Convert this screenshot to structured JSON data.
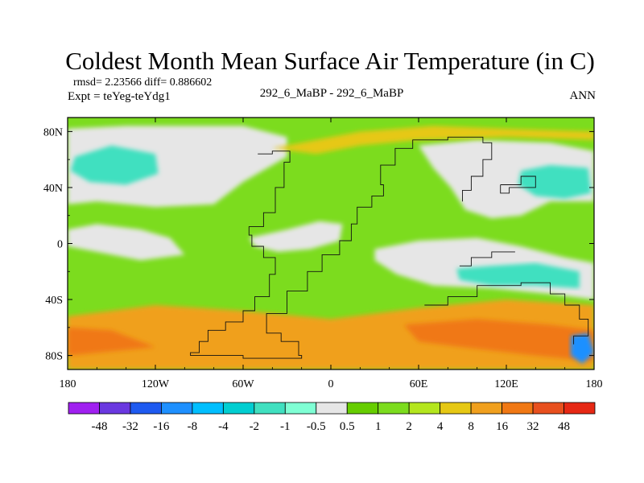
{
  "chart_data": {
    "type": "heatmap",
    "title": "Coldest Month Mean Surface Air Temperature (in C)",
    "stats": "rmsd= 2.23566 diff= 0.886602",
    "experiment": "Expt = teYeg-teYdg1",
    "center_label": "292_6_MaBP - 292_6_MaBP",
    "season": "ANN",
    "projection": "cylindrical equidistant",
    "xlim": [
      -180,
      180
    ],
    "ylim": [
      -90,
      90
    ],
    "x_ticks": [
      {
        "value": -180,
        "label": "180"
      },
      {
        "value": -120,
        "label": "120W"
      },
      {
        "value": -60,
        "label": "60W"
      },
      {
        "value": 0,
        "label": "0"
      },
      {
        "value": 60,
        "label": "60E"
      },
      {
        "value": 120,
        "label": "120E"
      },
      {
        "value": 180,
        "label": "180"
      }
    ],
    "y_ticks": [
      {
        "value": 80,
        "label": "80N"
      },
      {
        "value": 40,
        "label": "40N"
      },
      {
        "value": 0,
        "label": "0"
      },
      {
        "value": -40,
        "label": "40S"
      },
      {
        "value": -80,
        "label": "80S"
      }
    ],
    "colorbar": {
      "levels": [
        "-48",
        "-32",
        "-16",
        "-8",
        "-4",
        "-2",
        "-1",
        "-0.5",
        "0.5",
        "1",
        "2",
        "4",
        "8",
        "16",
        "32",
        "48"
      ],
      "colors": [
        "#a020f0",
        "#6a38e0",
        "#1e5af0",
        "#1e90ff",
        "#00bfff",
        "#00ced1",
        "#40e0c0",
        "#7fffd4",
        "#e6e6e6",
        "#66cd00",
        "#7cdc1e",
        "#b4e61e",
        "#e6c814",
        "#f0a01e",
        "#f07814",
        "#e8501e",
        "#e62814"
      ]
    },
    "regions": [
      {
        "name": "background",
        "bin": "1 to 2",
        "poly": [
          [
            -180,
            90
          ],
          [
            180,
            90
          ],
          [
            180,
            -90
          ],
          [
            -180,
            -90
          ]
        ]
      },
      {
        "name": "north-pacific-neutral",
        "bin": "-0.5 to 0.5",
        "poly": [
          [
            -180,
            82
          ],
          [
            -140,
            84
          ],
          [
            -60,
            84
          ],
          [
            -30,
            76
          ],
          [
            -30,
            62
          ],
          [
            -60,
            44
          ],
          [
            -80,
            28
          ],
          [
            -120,
            26
          ],
          [
            -160,
            30
          ],
          [
            -180,
            28
          ]
        ]
      },
      {
        "name": "eurasia-neutral-north",
        "bin": "-0.5 to 0.5",
        "poly": [
          [
            60,
            70
          ],
          [
            100,
            74
          ],
          [
            150,
            72
          ],
          [
            180,
            66
          ],
          [
            180,
            30
          ],
          [
            150,
            30
          ],
          [
            130,
            20
          ],
          [
            110,
            18
          ],
          [
            92,
            24
          ],
          [
            82,
            40
          ],
          [
            70,
            54
          ]
        ]
      },
      {
        "name": "pacific-neutral-south",
        "bin": "-0.5 to 0.5",
        "poly": [
          [
            -180,
            10
          ],
          [
            -160,
            14
          ],
          [
            -130,
            10
          ],
          [
            -110,
            4
          ],
          [
            -100,
            -8
          ],
          [
            -130,
            -12
          ],
          [
            -160,
            -6
          ],
          [
            -180,
            -2
          ]
        ]
      },
      {
        "name": "indian-ocean-neutral",
        "bin": "-0.5 to 0.5",
        "poly": [
          [
            30,
            -4
          ],
          [
            60,
            2
          ],
          [
            100,
            4
          ],
          [
            130,
            -2
          ],
          [
            160,
            -10
          ],
          [
            180,
            -14
          ],
          [
            180,
            -40
          ],
          [
            150,
            -36
          ],
          [
            110,
            -32
          ],
          [
            70,
            -30
          ],
          [
            45,
            -22
          ],
          [
            30,
            -12
          ]
        ]
      },
      {
        "name": "central-tropics-neutral",
        "bin": "-0.5 to 0.5",
        "poly": [
          [
            -56,
            4
          ],
          [
            -30,
            10
          ],
          [
            -8,
            16
          ],
          [
            8,
            14
          ],
          [
            6,
            2
          ],
          [
            -14,
            -4
          ],
          [
            -36,
            -6
          ],
          [
            -52,
            -2
          ]
        ]
      },
      {
        "name": "north-pacific-cool",
        "bin": "-2 to -1",
        "poly": [
          [
            -175,
            62
          ],
          [
            -150,
            70
          ],
          [
            -120,
            64
          ],
          [
            -118,
            50
          ],
          [
            -140,
            42
          ],
          [
            -165,
            44
          ],
          [
            -178,
            52
          ]
        ]
      },
      {
        "name": "northwest-pacific-cool",
        "bin": "-2 to -1",
        "poly": [
          [
            130,
            52
          ],
          [
            150,
            56
          ],
          [
            176,
            54
          ],
          [
            178,
            36
          ],
          [
            160,
            32
          ],
          [
            140,
            34
          ],
          [
            128,
            42
          ]
        ]
      },
      {
        "name": "west-pacific-warm-pool-cool",
        "bin": "-2 to -1",
        "poly": [
          [
            86,
            -18
          ],
          [
            110,
            -16
          ],
          [
            140,
            -14
          ],
          [
            170,
            -20
          ],
          [
            170,
            -32
          ],
          [
            140,
            -30
          ],
          [
            110,
            -30
          ],
          [
            88,
            -26
          ]
        ]
      },
      {
        "name": "southern-ocean-warm",
        "bin": "8 to 16",
        "poly": [
          [
            -180,
            -52
          ],
          [
            -120,
            -44
          ],
          [
            -60,
            -48
          ],
          [
            0,
            -54
          ],
          [
            60,
            -46
          ],
          [
            120,
            -40
          ],
          [
            180,
            -44
          ],
          [
            180,
            -90
          ],
          [
            -180,
            -90
          ]
        ]
      },
      {
        "name": "southern-ocean-hot",
        "bin": "16 to 32",
        "poly": [
          [
            -180,
            -60
          ],
          [
            -150,
            -62
          ],
          [
            -120,
            -74
          ],
          [
            -160,
            -78
          ],
          [
            -180,
            -80
          ]
        ]
      },
      {
        "name": "indian-southern-hot",
        "bin": "16 to 32",
        "poly": [
          [
            50,
            -58
          ],
          [
            100,
            -54
          ],
          [
            150,
            -58
          ],
          [
            180,
            -62
          ],
          [
            180,
            -84
          ],
          [
            140,
            -80
          ],
          [
            90,
            -74
          ],
          [
            60,
            -70
          ]
        ]
      },
      {
        "name": "antarctic-coast-cold",
        "bin": "-16 to -8",
        "poly": [
          [
            164,
            -66
          ],
          [
            176,
            -64
          ],
          [
            180,
            -78
          ],
          [
            172,
            -86
          ],
          [
            164,
            -80
          ]
        ]
      },
      {
        "name": "tropical-north-warm",
        "bin": "4 to 8",
        "poly": [
          [
            -40,
            68
          ],
          [
            -10,
            74
          ],
          [
            20,
            80
          ],
          [
            70,
            84
          ],
          [
            120,
            82
          ],
          [
            180,
            80
          ],
          [
            180,
            74
          ],
          [
            120,
            76
          ],
          [
            60,
            74
          ],
          [
            20,
            70
          ],
          [
            -10,
            64
          ]
        ]
      }
    ],
    "coastlines": [
      [
        [
          -50,
          64
        ],
        [
          -40,
          66
        ],
        [
          -28,
          58
        ],
        [
          -32,
          40
        ],
        [
          -38,
          22
        ],
        [
          -46,
          12
        ],
        [
          -56,
          6
        ],
        [
          -54,
          -2
        ],
        [
          -46,
          -10
        ],
        [
          -38,
          -22
        ],
        [
          -42,
          -38
        ],
        [
          -52,
          -48
        ],
        [
          -60,
          -56
        ],
        [
          -72,
          -62
        ],
        [
          -84,
          -70
        ],
        [
          -90,
          -78
        ],
        [
          -96,
          -80
        ],
        [
          -60,
          -82
        ],
        [
          -20,
          -80
        ],
        [
          -22,
          -70
        ],
        [
          -34,
          -64
        ],
        [
          -44,
          -50
        ],
        [
          -30,
          -34
        ],
        [
          -16,
          -20
        ],
        [
          -6,
          -8
        ],
        [
          6,
          2
        ],
        [
          14,
          14
        ],
        [
          18,
          26
        ],
        [
          28,
          34
        ],
        [
          36,
          42
        ],
        [
          34,
          56
        ],
        [
          44,
          68
        ],
        [
          56,
          74
        ],
        [
          80,
          76
        ],
        [
          104,
          72
        ],
        [
          110,
          60
        ],
        [
          104,
          48
        ],
        [
          96,
          38
        ],
        [
          90,
          30
        ]
      ],
      [
        [
          64,
          -44
        ],
        [
          80,
          -38
        ],
        [
          100,
          -30
        ],
        [
          130,
          -28
        ],
        [
          150,
          -36
        ],
        [
          160,
          -44
        ],
        [
          170,
          -54
        ],
        [
          176,
          -66
        ],
        [
          166,
          -72
        ]
      ],
      [
        [
          116,
          42
        ],
        [
          130,
          48
        ],
        [
          140,
          40
        ],
        [
          122,
          36
        ],
        [
          116,
          42
        ]
      ],
      [
        [
          88,
          -16
        ],
        [
          96,
          -10
        ],
        [
          110,
          -6
        ],
        [
          126,
          -6
        ]
      ]
    ]
  }
}
